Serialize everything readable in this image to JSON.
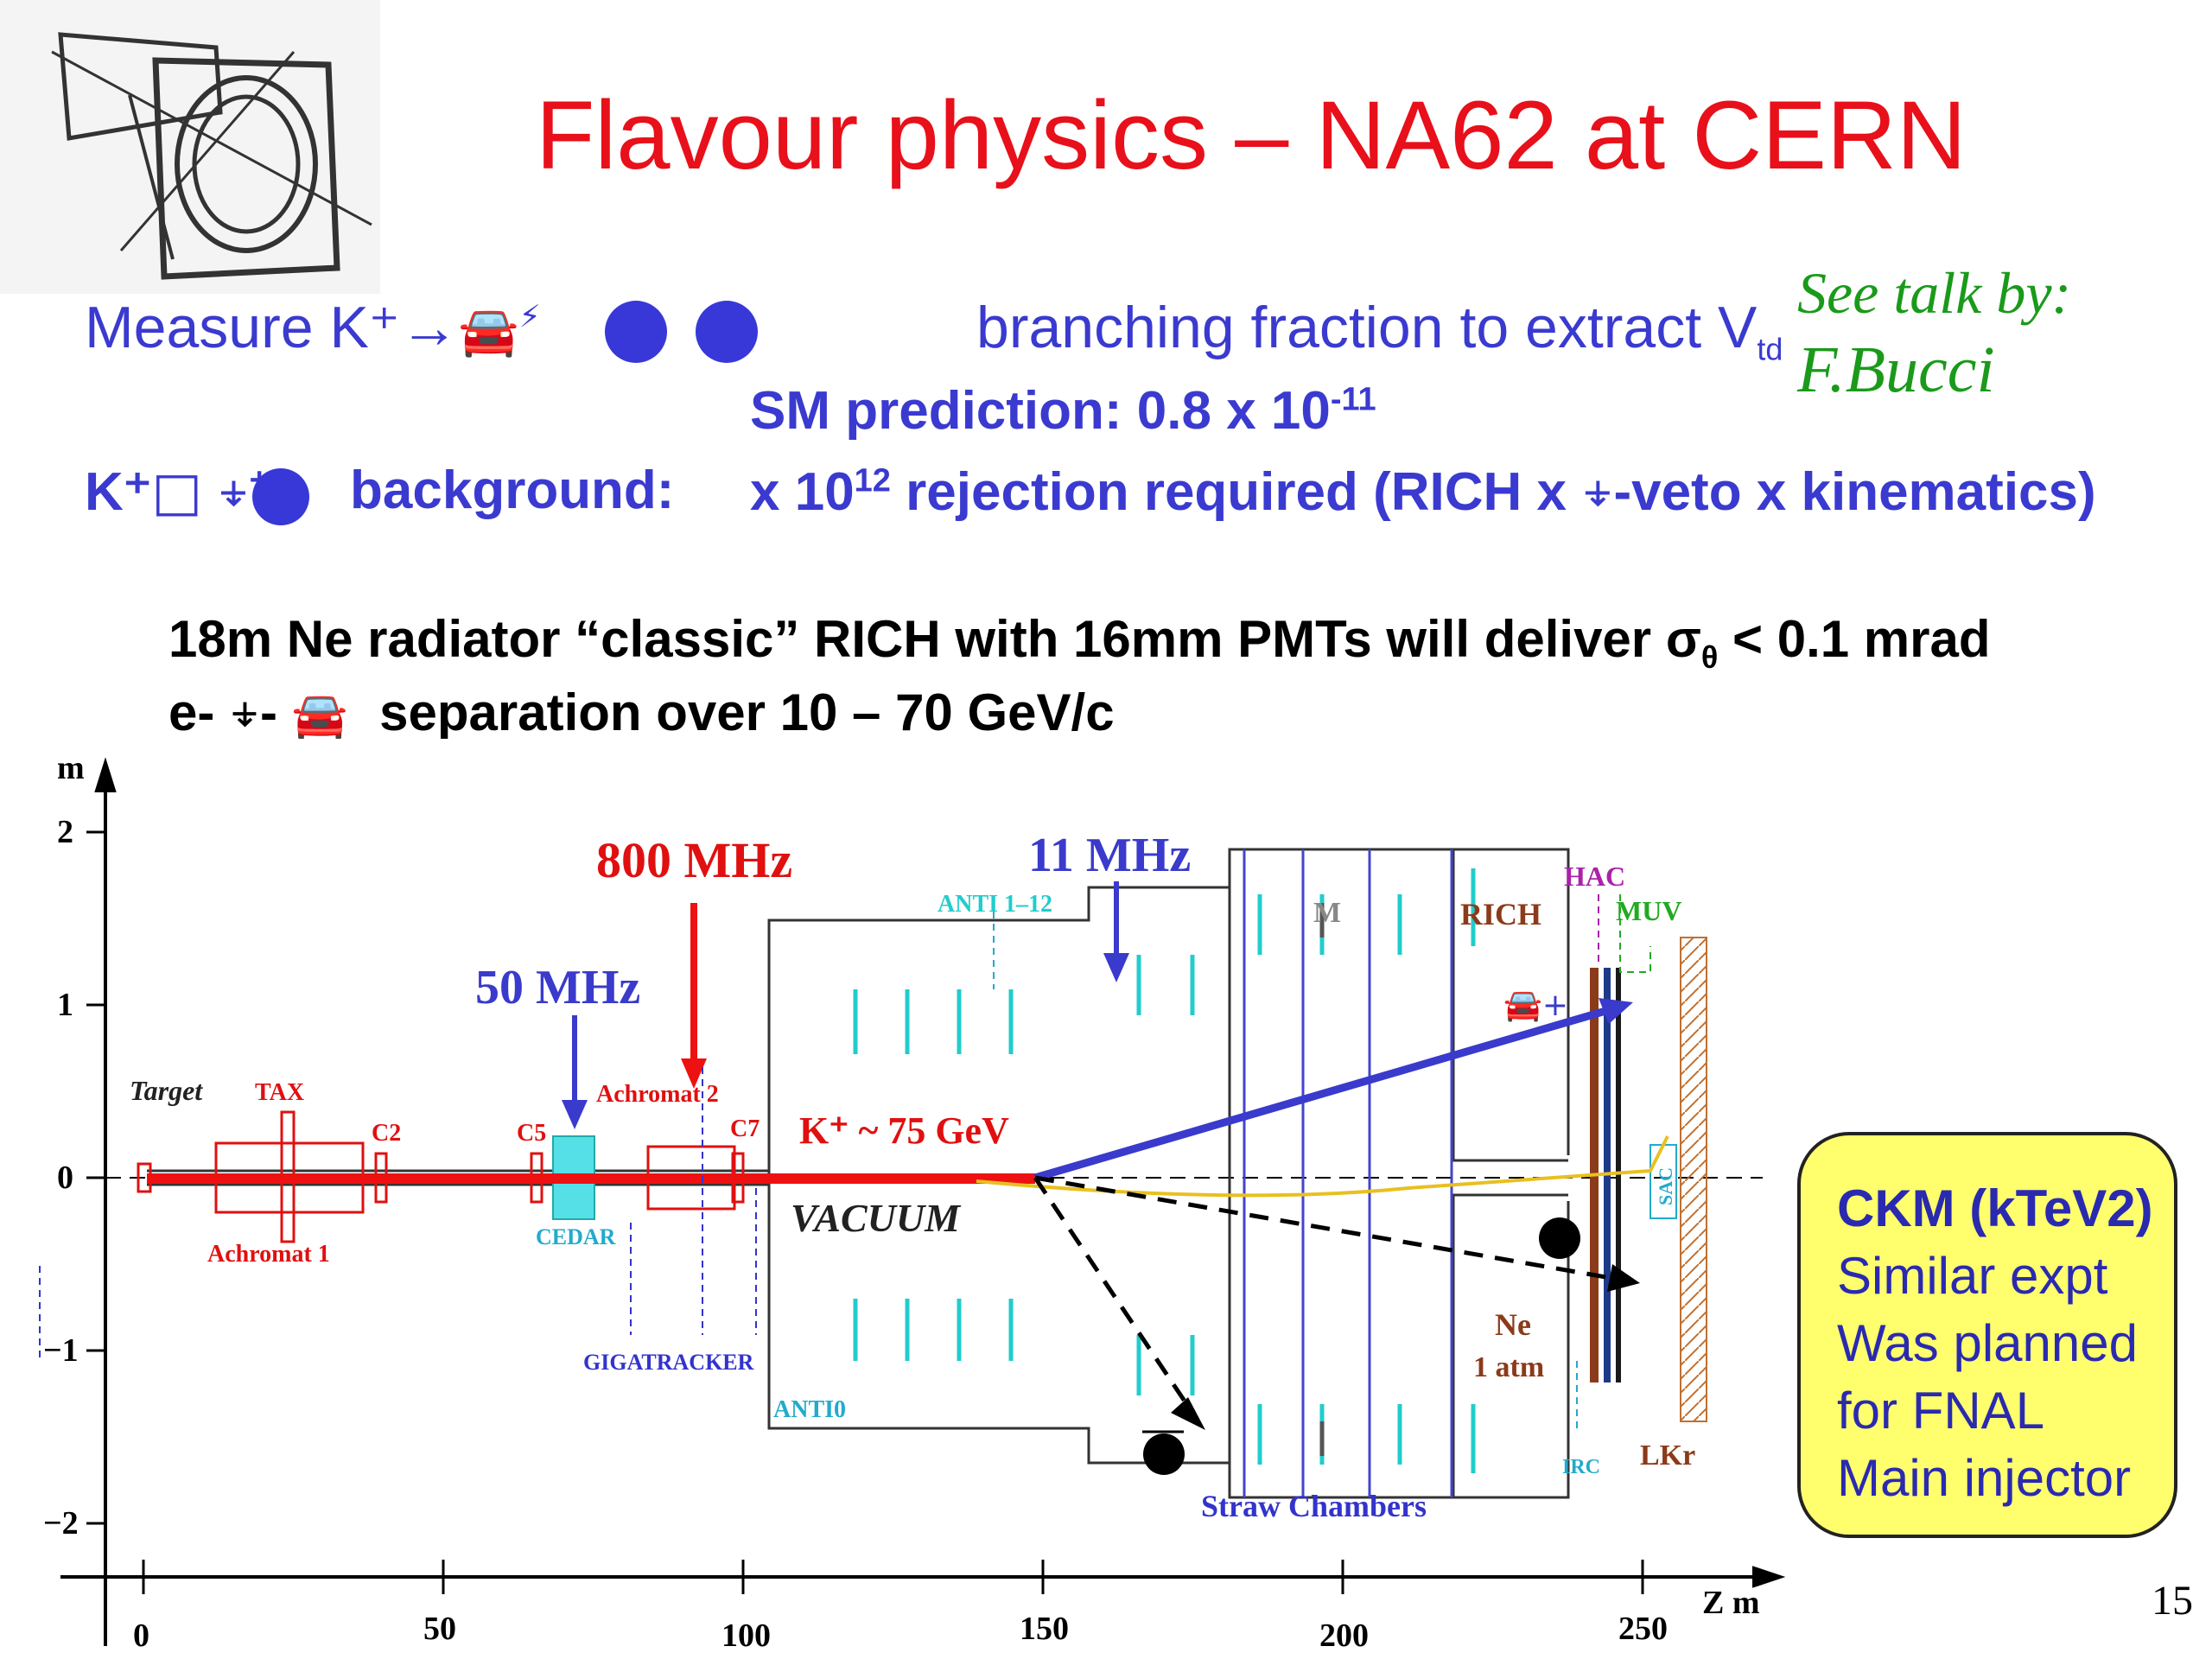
{
  "title": "Flavour physics – NA62 at CERN",
  "measure": {
    "prefix": "Measure K⁺→",
    "suffix": "branching fraction to extract V",
    "sub": "td"
  },
  "see_talk": {
    "line1": "See talk by:",
    "line2": "F.Bucci"
  },
  "sm_prediction": {
    "text": "SM prediction: 0.8 x 10",
    "exp": "-11"
  },
  "background": {
    "label": "K⁺",
    "word": "background:",
    "text_pre": "x 10",
    "exp": "12",
    "text_post": " rejection required (RICH x ",
    "text_end": "-veto x kinematics)"
  },
  "rich_line": {
    "text": "18m Ne radiator “classic” RICH with 16mm PMTs will deliver σ",
    "sub": "θ",
    "tail": " < 0.1 mrad"
  },
  "sep_line": {
    "prefix": "e-",
    "dash": "-",
    "text": "separation over 10 – 70 GeV/c"
  },
  "ckm_box": {
    "title": "CKM (kTeV2)",
    "lines": [
      "Similar expt",
      "Was planned",
      "for FNAL",
      "Main injector"
    ]
  },
  "page_number": "15",
  "colors": {
    "title": "#e8101a",
    "blue_text": "#3a3ad0",
    "green": "#1a9a1a",
    "box_fill": "#ffff6e",
    "beam_red": "#ee1111",
    "cyan": "#22cccc"
  },
  "diagram": {
    "y_axis_unit": "m",
    "x_axis_unit": "Z  m",
    "y_ticks": [
      "2",
      "1",
      "0",
      "−1",
      "−2"
    ],
    "x_ticks": [
      "0",
      "50",
      "100",
      "150",
      "200",
      "250"
    ],
    "rates": {
      "r800": "800 MHz",
      "r50": "50 MHz",
      "r11": "11 MHz"
    },
    "labels": {
      "target": "Target",
      "tax": "TAX",
      "c2": "C2",
      "c5": "C5",
      "c7": "C7",
      "achromat1": "Achromat 1",
      "achromat2": "Achromat 2",
      "cedar": "CEDAR",
      "gigatracker": "GIGATRACKER",
      "anti0": "ANTI0",
      "anti112": "ANTI 1–12",
      "vacuum": "VACUUM",
      "kaon": "K⁺ ~ 75 GeV",
      "m": "M",
      "rich": "RICH",
      "hac": "HAC",
      "muv": "MUV",
      "ne": "Ne",
      "atm": "1 atm",
      "irc": "IRC",
      "lkr": "LKr",
      "sac": "SAC",
      "straw": "Straw Chambers"
    }
  }
}
